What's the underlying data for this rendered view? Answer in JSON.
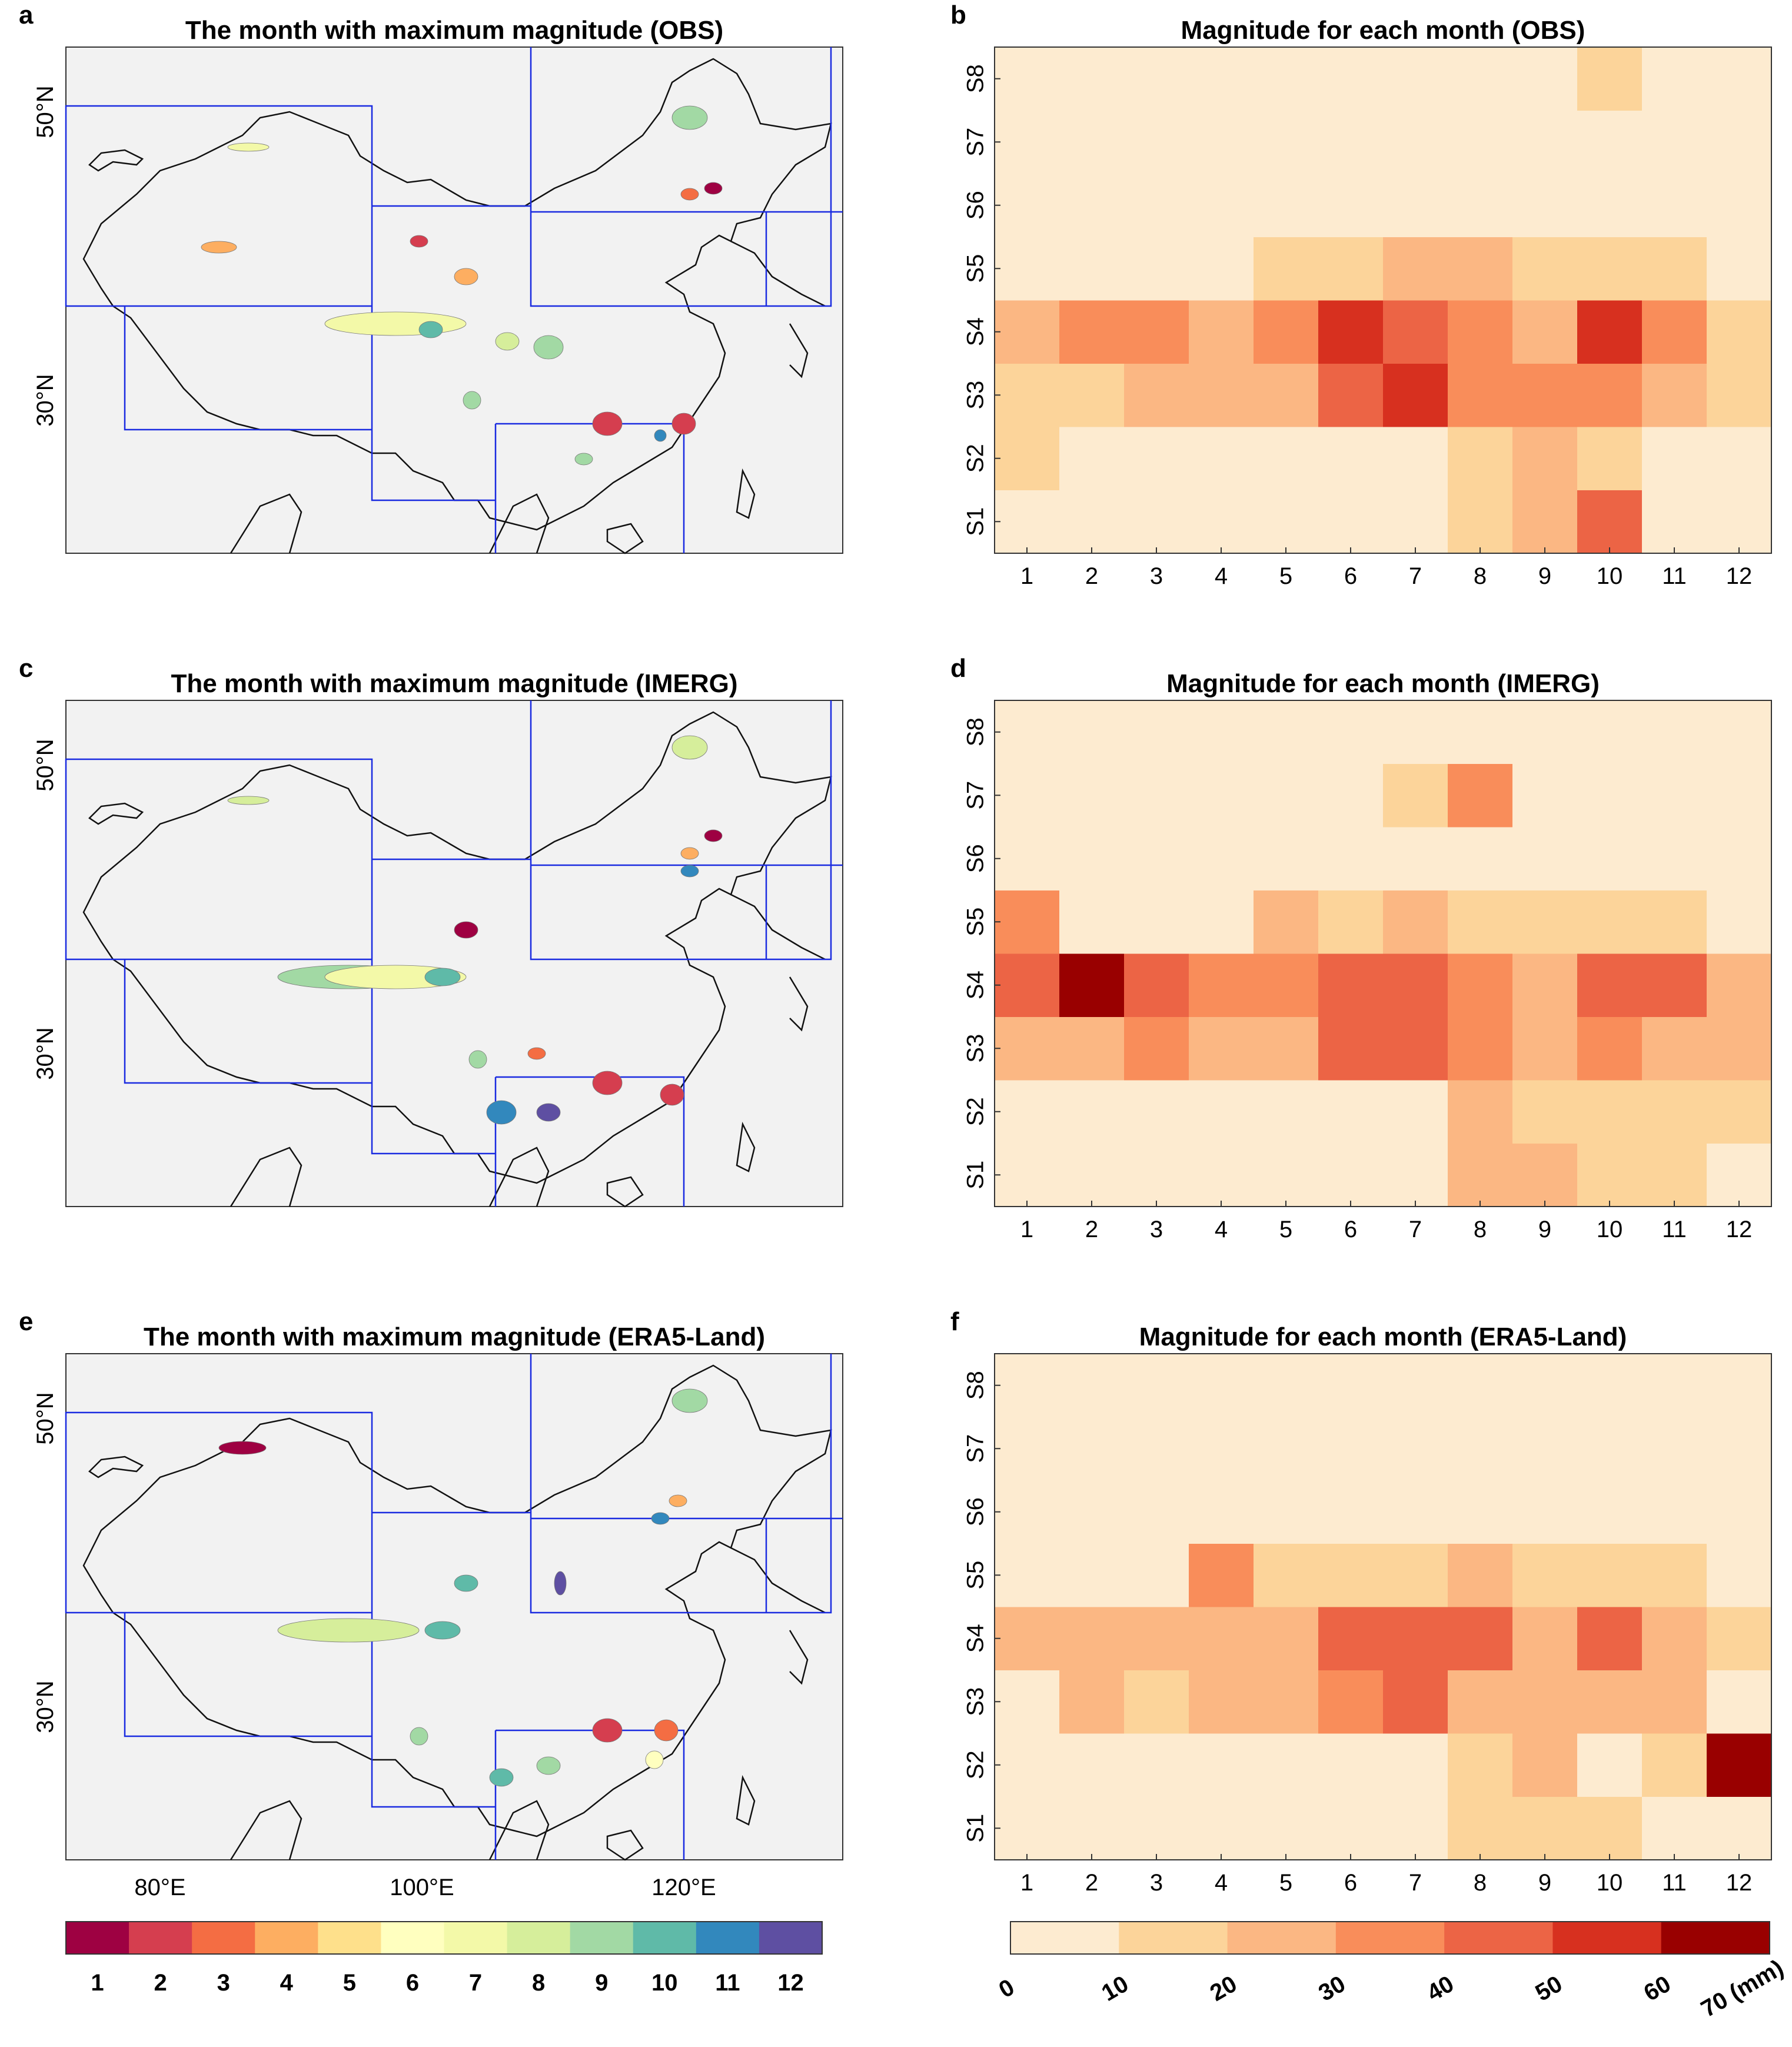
{
  "panels": [
    {
      "letter": "a",
      "title": "The month with maximum magnitude (OBS)"
    },
    {
      "letter": "b",
      "title": "Magnitude for each month (OBS)"
    },
    {
      "letter": "c",
      "title": "The month with maximum magnitude (IMERG)"
    },
    {
      "letter": "d",
      "title": "Magnitude for each month (IMERG)"
    },
    {
      "letter": "e",
      "title": "The month with maximum magnitude (ERA5-Land)"
    },
    {
      "letter": "f",
      "title": "Magnitude for each month (ERA5-Land)"
    }
  ],
  "map_axes": {
    "lat_labels": [
      "50°N",
      "30°N"
    ],
    "lon_labels": [
      "80°E",
      "100°E",
      "120°E"
    ]
  },
  "month_legend": {
    "labels": [
      "1",
      "2",
      "3",
      "4",
      "5",
      "6",
      "7",
      "8",
      "9",
      "10",
      "11",
      "12"
    ],
    "colors": [
      "#9e0142",
      "#d53e4f",
      "#f46d43",
      "#fdae61",
      "#fee08b",
      "#ffffbf",
      "#f3f9a8",
      "#d6ee9b",
      "#a2d9a4",
      "#5fbaa8",
      "#3288bd",
      "#5e4fa2"
    ]
  },
  "magnitude_legend": {
    "ticks": [
      "0",
      "10",
      "20",
      "30",
      "40",
      "50",
      "60",
      "70 (mm)"
    ],
    "colors": [
      "#fdebd0",
      "#fcd49a",
      "#fbb783",
      "#f98d5a",
      "#ec6445",
      "#d7301f",
      "#990000"
    ]
  },
  "chart_data": [
    {
      "type": "heatmap",
      "title": "Magnitude for each month (OBS)",
      "x": [
        "1",
        "2",
        "3",
        "4",
        "5",
        "6",
        "7",
        "8",
        "9",
        "10",
        "11",
        "12"
      ],
      "y": [
        "S1",
        "S2",
        "S3",
        "S4",
        "S5",
        "S6",
        "S7",
        "S8"
      ],
      "unit": "mm",
      "zlim": [
        0,
        70
      ],
      "values": [
        [
          5,
          5,
          5,
          5,
          5,
          5,
          5,
          15,
          25,
          45,
          5,
          5
        ],
        [
          15,
          5,
          5,
          5,
          5,
          5,
          5,
          15,
          25,
          15,
          5,
          5
        ],
        [
          15,
          15,
          25,
          25,
          25,
          45,
          55,
          35,
          35,
          35,
          25,
          15
        ],
        [
          25,
          35,
          35,
          25,
          35,
          55,
          45,
          35,
          25,
          55,
          35,
          15
        ],
        [
          5,
          5,
          5,
          5,
          15,
          15,
          25,
          25,
          15,
          15,
          15,
          5
        ],
        [
          5,
          5,
          5,
          5,
          5,
          5,
          5,
          5,
          5,
          5,
          5,
          5
        ],
        [
          5,
          5,
          5,
          5,
          5,
          5,
          5,
          5,
          5,
          5,
          5,
          5
        ],
        [
          5,
          5,
          5,
          5,
          5,
          5,
          5,
          5,
          5,
          15,
          5,
          5
        ]
      ]
    },
    {
      "type": "heatmap",
      "title": "Magnitude for each month (IMERG)",
      "x": [
        "1",
        "2",
        "3",
        "4",
        "5",
        "6",
        "7",
        "8",
        "9",
        "10",
        "11",
        "12"
      ],
      "y": [
        "S1",
        "S2",
        "S3",
        "S4",
        "S5",
        "S6",
        "S7",
        "S8"
      ],
      "unit": "mm",
      "zlim": [
        0,
        70
      ],
      "values": [
        [
          5,
          5,
          5,
          5,
          5,
          5,
          5,
          25,
          25,
          15,
          15,
          5
        ],
        [
          5,
          5,
          5,
          5,
          5,
          5,
          5,
          25,
          15,
          15,
          15,
          15
        ],
        [
          25,
          25,
          35,
          25,
          25,
          45,
          45,
          35,
          25,
          35,
          25,
          25
        ],
        [
          45,
          65,
          45,
          35,
          35,
          45,
          45,
          35,
          25,
          45,
          45,
          25
        ],
        [
          35,
          5,
          5,
          5,
          25,
          15,
          25,
          15,
          15,
          15,
          15,
          5
        ],
        [
          5,
          5,
          5,
          5,
          5,
          5,
          5,
          5,
          5,
          5,
          5,
          5
        ],
        [
          5,
          5,
          5,
          5,
          5,
          5,
          15,
          35,
          5,
          5,
          5,
          5
        ],
        [
          5,
          5,
          5,
          5,
          5,
          5,
          5,
          5,
          5,
          5,
          5,
          5
        ]
      ]
    },
    {
      "type": "heatmap",
      "title": "Magnitude for each month (ERA5-Land)",
      "x": [
        "1",
        "2",
        "3",
        "4",
        "5",
        "6",
        "7",
        "8",
        "9",
        "10",
        "11",
        "12"
      ],
      "y": [
        "S1",
        "S2",
        "S3",
        "S4",
        "S5",
        "S6",
        "S7",
        "S8"
      ],
      "unit": "mm",
      "zlim": [
        0,
        70
      ],
      "values": [
        [
          5,
          5,
          5,
          5,
          5,
          5,
          5,
          15,
          15,
          15,
          5,
          5
        ],
        [
          5,
          5,
          5,
          5,
          5,
          5,
          5,
          15,
          25,
          5,
          15,
          65
        ],
        [
          5,
          25,
          15,
          25,
          25,
          35,
          45,
          25,
          25,
          25,
          25,
          5
        ],
        [
          25,
          25,
          25,
          25,
          25,
          45,
          45,
          45,
          25,
          45,
          25,
          15
        ],
        [
          5,
          5,
          5,
          35,
          15,
          15,
          15,
          25,
          15,
          15,
          15,
          5
        ],
        [
          5,
          5,
          5,
          5,
          5,
          5,
          5,
          5,
          5,
          5,
          5,
          5
        ],
        [
          5,
          5,
          5,
          5,
          5,
          5,
          5,
          5,
          5,
          5,
          5,
          5
        ],
        [
          5,
          5,
          5,
          5,
          5,
          5,
          5,
          5,
          5,
          5,
          5,
          5
        ]
      ]
    }
  ]
}
